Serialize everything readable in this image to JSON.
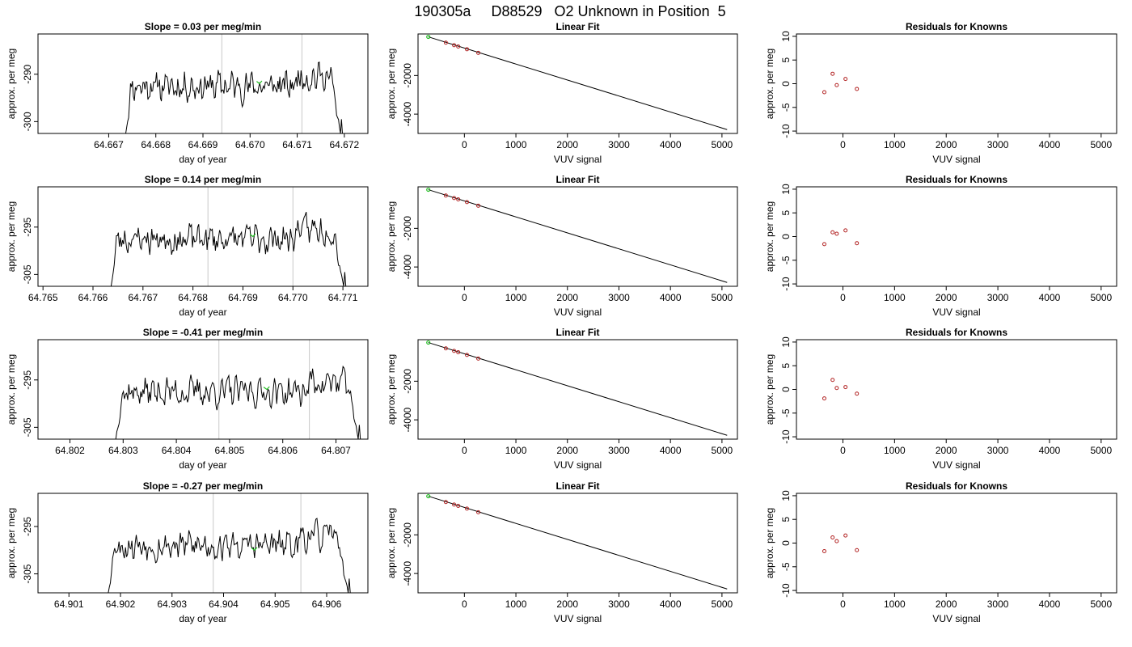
{
  "figure_title": "190305a     D88529   O2 Unknown in Position  5",
  "colors": {
    "trace": "#000000",
    "known_points": "#b22222",
    "unknown_point": "#22c022",
    "reference_lines": "#c8c8c8"
  },
  "chart_data": [
    {
      "type": "line",
      "row": 0,
      "panel": "time",
      "title": "Slope =  0.03  per meg/min",
      "xlabel": "day of year",
      "ylabel": "approx. per meg",
      "xlim": [
        64.6655,
        64.6725
      ],
      "ylim": [
        -302.5,
        -281.5
      ],
      "xticks": [
        64.667,
        64.668,
        64.669,
        64.67,
        64.671,
        64.672
      ],
      "xtick_labels": [
        "64.667",
        "64.668",
        "64.669",
        "64.670",
        "64.671",
        "64.672"
      ],
      "yticks": [
        -300,
        -290
      ],
      "ytick_labels": [
        "-300",
        "-290"
      ],
      "vlines": [
        64.6694,
        64.6711
      ],
      "trace_x_range": [
        64.6673,
        64.672
      ],
      "trace_base": -292.5,
      "trace_amp": 4.0,
      "trace_seed": 11,
      "unknown_point": {
        "x": 64.6702,
        "y": -292.0
      }
    },
    {
      "type": "line",
      "row": 0,
      "panel": "fit",
      "title": "Linear Fit",
      "xlabel": "VUV signal",
      "ylabel": "approx. per meg",
      "xlim": [
        -900,
        5300
      ],
      "ylim": [
        -5000,
        150
      ],
      "xticks": [
        0,
        1000,
        2000,
        3000,
        4000,
        5000
      ],
      "xtick_labels": [
        "0",
        "1000",
        "2000",
        "3000",
        "4000",
        "5000"
      ],
      "yticks": [
        -4000,
        -2000
      ],
      "ytick_labels": [
        "-4000",
        "-2000"
      ],
      "line": {
        "x": [
          -700,
          5100
        ],
        "y": [
          0,
          -4800
        ]
      },
      "known_points": {
        "x": [
          -360,
          -200,
          -120,
          50,
          270
        ],
        "y": [
          -300,
          -430,
          -500,
          -640,
          -830
        ]
      },
      "unknown_point": {
        "x": -700,
        "y": 0
      }
    },
    {
      "type": "scatter",
      "row": 0,
      "panel": "residuals",
      "title": "Residuals for Knowns",
      "xlabel": "VUV signal",
      "ylabel": "approx. per meg",
      "xlim": [
        -900,
        5300
      ],
      "ylim": [
        -10.5,
        10.5
      ],
      "xticks": [
        0,
        1000,
        2000,
        3000,
        4000,
        5000
      ],
      "xtick_labels": [
        "0",
        "1000",
        "2000",
        "3000",
        "4000",
        "5000"
      ],
      "yticks": [
        -10,
        -5,
        0,
        5,
        10
      ],
      "ytick_labels": [
        "-10",
        "-5",
        "0",
        "5",
        "10"
      ],
      "points": {
        "x": [
          -360,
          -200,
          -120,
          50,
          270
        ],
        "y": [
          -1.8,
          2.1,
          -0.3,
          1.0,
          -1.1
        ]
      }
    },
    {
      "type": "line",
      "row": 1,
      "panel": "time",
      "title": "Slope =  0.14  per meg/min",
      "xlabel": "day of year",
      "ylabel": "approx. per meg",
      "xlim": [
        64.7649,
        64.7715
      ],
      "ylim": [
        -307.5,
        -286.5
      ],
      "xticks": [
        64.765,
        64.766,
        64.767,
        64.768,
        64.769,
        64.77,
        64.771
      ],
      "xtick_labels": [
        "64.765",
        "64.766",
        "64.767",
        "64.768",
        "64.769",
        "64.770",
        "64.771"
      ],
      "yticks": [
        -305,
        -295
      ],
      "ytick_labels": [
        "-305",
        "-295"
      ],
      "vlines": [
        64.7683,
        64.77
      ],
      "trace_x_range": [
        64.7663,
        64.7711
      ],
      "trace_base": -297.5,
      "trace_amp": 4.0,
      "trace_seed": 23,
      "unknown_point": {
        "x": 64.7692,
        "y": -297.0
      }
    },
    {
      "type": "line",
      "row": 1,
      "panel": "fit",
      "title": "Linear Fit",
      "xlabel": "VUV signal",
      "ylabel": "approx. per meg",
      "xlim": [
        -900,
        5300
      ],
      "ylim": [
        -5000,
        150
      ],
      "xticks": [
        0,
        1000,
        2000,
        3000,
        4000,
        5000
      ],
      "xtick_labels": [
        "0",
        "1000",
        "2000",
        "3000",
        "4000",
        "5000"
      ],
      "yticks": [
        -4000,
        -2000
      ],
      "ytick_labels": [
        "-4000",
        "-2000"
      ],
      "line": {
        "x": [
          -700,
          5100
        ],
        "y": [
          0,
          -4800
        ]
      },
      "known_points": {
        "x": [
          -360,
          -200,
          -120,
          50,
          270
        ],
        "y": [
          -300,
          -430,
          -500,
          -640,
          -830
        ]
      },
      "unknown_point": {
        "x": -700,
        "y": 0
      }
    },
    {
      "type": "scatter",
      "row": 1,
      "panel": "residuals",
      "title": "Residuals for Knowns",
      "xlabel": "VUV signal",
      "ylabel": "approx. per meg",
      "xlim": [
        -900,
        5300
      ],
      "ylim": [
        -10.5,
        10.5
      ],
      "xticks": [
        0,
        1000,
        2000,
        3000,
        4000,
        5000
      ],
      "xtick_labels": [
        "0",
        "1000",
        "2000",
        "3000",
        "4000",
        "5000"
      ],
      "yticks": [
        -10,
        -5,
        0,
        5,
        10
      ],
      "ytick_labels": [
        "-10",
        "-5",
        "0",
        "5",
        "10"
      ],
      "points": {
        "x": [
          -360,
          -200,
          -120,
          50,
          270
        ],
        "y": [
          -1.6,
          0.9,
          0.6,
          1.3,
          -1.4
        ]
      }
    },
    {
      "type": "line",
      "row": 2,
      "panel": "time",
      "title": "Slope =  -0.41  per meg/min",
      "xlabel": "day of year",
      "ylabel": "approx. per meg",
      "xlim": [
        64.8014,
        64.8076
      ],
      "ylim": [
        -307.5,
        -286.5
      ],
      "xticks": [
        64.802,
        64.803,
        64.804,
        64.805,
        64.806,
        64.807
      ],
      "xtick_labels": [
        "64.802",
        "64.803",
        "64.804",
        "64.805",
        "64.806",
        "64.807"
      ],
      "yticks": [
        -305,
        -295
      ],
      "ytick_labels": [
        "-305",
        "-295"
      ],
      "vlines": [
        64.8048,
        64.8065
      ],
      "trace_x_range": [
        64.8028,
        64.8075
      ],
      "trace_base": -297.5,
      "trace_amp": 4.0,
      "trace_seed": 37,
      "unknown_point": {
        "x": 64.8057,
        "y": -297.0
      }
    },
    {
      "type": "line",
      "row": 2,
      "panel": "fit",
      "title": "Linear Fit",
      "xlabel": "VUV signal",
      "ylabel": "approx. per meg",
      "xlim": [
        -900,
        5300
      ],
      "ylim": [
        -5000,
        150
      ],
      "xticks": [
        0,
        1000,
        2000,
        3000,
        4000,
        5000
      ],
      "xtick_labels": [
        "0",
        "1000",
        "2000",
        "3000",
        "4000",
        "5000"
      ],
      "yticks": [
        -4000,
        -2000
      ],
      "ytick_labels": [
        "-4000",
        "-2000"
      ],
      "line": {
        "x": [
          -700,
          5100
        ],
        "y": [
          0,
          -4800
        ]
      },
      "known_points": {
        "x": [
          -360,
          -200,
          -120,
          50,
          270
        ],
        "y": [
          -300,
          -430,
          -500,
          -640,
          -830
        ]
      },
      "unknown_point": {
        "x": -700,
        "y": 0
      }
    },
    {
      "type": "scatter",
      "row": 2,
      "panel": "residuals",
      "title": "Residuals for Knowns",
      "xlabel": "VUV signal",
      "ylabel": "approx. per meg",
      "xlim": [
        -900,
        5300
      ],
      "ylim": [
        -10.5,
        10.5
      ],
      "xticks": [
        0,
        1000,
        2000,
        3000,
        4000,
        5000
      ],
      "xtick_labels": [
        "0",
        "1000",
        "2000",
        "3000",
        "4000",
        "5000"
      ],
      "yticks": [
        -10,
        -5,
        0,
        5,
        10
      ],
      "ytick_labels": [
        "-10",
        "-5",
        "0",
        "5",
        "10"
      ],
      "points": {
        "x": [
          -360,
          -200,
          -120,
          50,
          270
        ],
        "y": [
          -1.9,
          2.0,
          0.3,
          0.5,
          -0.9
        ]
      }
    },
    {
      "type": "line",
      "row": 3,
      "panel": "time",
      "title": "Slope =  -0.27  per meg/min",
      "xlabel": "day of year",
      "ylabel": "approx. per meg",
      "xlim": [
        64.9004,
        64.9068
      ],
      "ylim": [
        -309,
        -288
      ],
      "xticks": [
        64.901,
        64.902,
        64.903,
        64.904,
        64.905,
        64.906
      ],
      "xtick_labels": [
        "64.901",
        "64.902",
        "64.903",
        "64.904",
        "64.905",
        "64.906"
      ],
      "yticks": [
        -305,
        -295
      ],
      "ytick_labels": [
        "-305",
        "-295"
      ],
      "vlines": [
        64.9038,
        64.9055
      ],
      "trace_x_range": [
        64.9017,
        64.9065
      ],
      "trace_base": -299.0,
      "trace_amp": 4.0,
      "trace_seed": 53,
      "unknown_point": {
        "x": 64.9046,
        "y": -300.0
      }
    },
    {
      "type": "line",
      "row": 3,
      "panel": "fit",
      "title": "Linear Fit",
      "xlabel": "VUV signal",
      "ylabel": "approx. per meg",
      "xlim": [
        -900,
        5300
      ],
      "ylim": [
        -5000,
        150
      ],
      "xticks": [
        0,
        1000,
        2000,
        3000,
        4000,
        5000
      ],
      "xtick_labels": [
        "0",
        "1000",
        "2000",
        "3000",
        "4000",
        "5000"
      ],
      "yticks": [
        -4000,
        -2000
      ],
      "ytick_labels": [
        "-4000",
        "-2000"
      ],
      "line": {
        "x": [
          -700,
          5100
        ],
        "y": [
          0,
          -4800
        ]
      },
      "known_points": {
        "x": [
          -360,
          -200,
          -120,
          50,
          270
        ],
        "y": [
          -300,
          -430,
          -500,
          -640,
          -830
        ]
      },
      "unknown_point": {
        "x": -700,
        "y": 0
      }
    },
    {
      "type": "scatter",
      "row": 3,
      "panel": "residuals",
      "title": "Residuals for Knowns",
      "xlabel": "VUV signal",
      "ylabel": "approx. per meg",
      "xlim": [
        -900,
        5300
      ],
      "ylim": [
        -10.5,
        10.5
      ],
      "xticks": [
        0,
        1000,
        2000,
        3000,
        4000,
        5000
      ],
      "xtick_labels": [
        "0",
        "1000",
        "2000",
        "3000",
        "4000",
        "5000"
      ],
      "yticks": [
        -10,
        -5,
        0,
        5,
        10
      ],
      "ytick_labels": [
        "-10",
        "-5",
        "0",
        "5",
        "10"
      ],
      "points": {
        "x": [
          -360,
          -200,
          -120,
          50,
          270
        ],
        "y": [
          -1.7,
          1.2,
          0.4,
          1.6,
          -1.5
        ]
      }
    }
  ]
}
